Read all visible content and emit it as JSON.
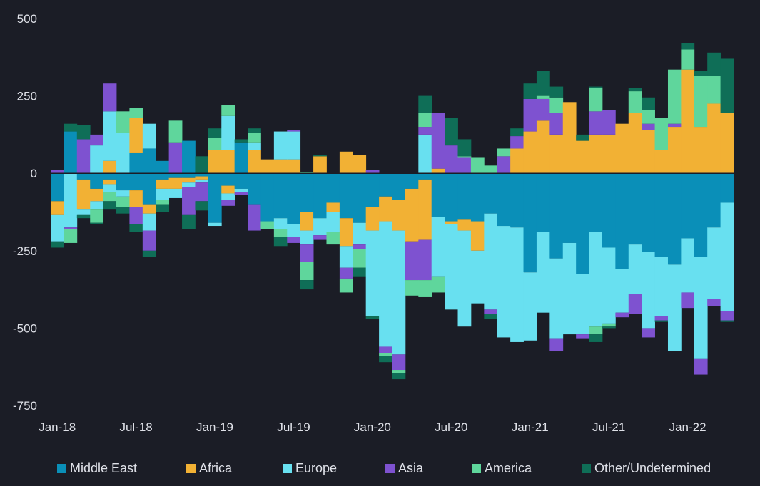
{
  "colors": {
    "background": "#1b1d26",
    "text": "#dfe1e8",
    "Middle East": "#0a8fb8",
    "Africa": "#f2b134",
    "Europe": "#68e0f0",
    "Asia": "#7e52d0",
    "America": "#5fd69c",
    "Other/Undetermined": "#0f6e57"
  },
  "chart_data": {
    "type": "bar",
    "stacked": true,
    "diverging": true,
    "title": "",
    "xlabel": "",
    "ylabel": "",
    "ylim": [
      -750,
      500
    ],
    "y_ticks": [
      500,
      250,
      0,
      -250,
      -500,
      -750
    ],
    "y_tick_labels": [
      "500",
      "250",
      "0",
      "-250",
      "-500",
      "-750"
    ],
    "x_tick_labels": [
      "Jan-18",
      "Jul-18",
      "Jan-19",
      "Jul-19",
      "Jan-20",
      "Jul-20",
      "Jan-21",
      "Jul-21",
      "Jan-22"
    ],
    "x_tick_months": [
      "Jan-18",
      "Jul-18",
      "Jan-19",
      "Jul-19",
      "Jan-20",
      "Jul-20",
      "Jan-21",
      "Jul-21",
      "Jan-22"
    ],
    "grid": false,
    "legend_position": "bottom",
    "categories": [
      "Jan-18",
      "Feb-18",
      "Mar-18",
      "Apr-18",
      "May-18",
      "Jun-18",
      "Jul-18",
      "Aug-18",
      "Sep-18",
      "Oct-18",
      "Nov-18",
      "Dec-18",
      "Jan-19",
      "Feb-19",
      "Mar-19",
      "Apr-19",
      "May-19",
      "Jun-19",
      "Jul-19",
      "Aug-19",
      "Sep-19",
      "Oct-19",
      "Nov-19",
      "Dec-19",
      "Jan-20",
      "Feb-20",
      "Mar-20",
      "Apr-20",
      "May-20",
      "Jun-20",
      "Jul-20",
      "Aug-20",
      "Sep-20",
      "Oct-20",
      "Nov-20",
      "Dec-20",
      "Jan-21",
      "Feb-21",
      "Mar-21",
      "Apr-21",
      "May-21",
      "Jun-21",
      "Jul-21",
      "Aug-21",
      "Sep-21",
      "Oct-21",
      "Nov-21",
      "Dec-21",
      "Jan-22",
      "Feb-22",
      "Mar-22",
      "Apr-22"
    ],
    "series": [
      {
        "name": "Middle East",
        "pos": [
          0,
          135,
          0,
          0,
          0,
          0,
          65,
          80,
          40,
          0,
          105,
          0,
          0,
          0,
          100,
          0,
          0,
          0,
          0,
          0,
          0,
          0,
          0,
          0,
          0,
          0,
          0,
          0,
          0,
          0,
          0,
          0,
          0,
          0,
          0,
          0,
          0,
          0,
          0,
          0,
          0,
          0,
          0,
          0,
          0,
          0,
          0,
          0,
          0,
          0,
          0,
          0
        ],
        "neg": [
          -90,
          0,
          -20,
          -50,
          -20,
          -55,
          -55,
          -100,
          -20,
          -15,
          -15,
          -10,
          -160,
          -40,
          -50,
          -100,
          -155,
          -145,
          -165,
          -125,
          -145,
          -95,
          -145,
          -160,
          -110,
          -75,
          -85,
          -50,
          -20,
          -140,
          -155,
          -150,
          -155,
          -130,
          -170,
          -175,
          -320,
          -190,
          -275,
          -225,
          -325,
          -190,
          -240,
          -310,
          -230,
          -255,
          -270,
          -295,
          -210,
          -270,
          -175,
          -95
        ]
      },
      {
        "name": "Africa",
        "pos": [
          0,
          0,
          0,
          0,
          40,
          0,
          115,
          0,
          0,
          0,
          0,
          0,
          75,
          75,
          0,
          75,
          45,
          45,
          45,
          0,
          55,
          0,
          70,
          60,
          0,
          0,
          0,
          0,
          0,
          15,
          0,
          0,
          0,
          0,
          0,
          80,
          135,
          170,
          125,
          230,
          105,
          125,
          125,
          160,
          195,
          140,
          75,
          150,
          335,
          150,
          225,
          195
        ],
        "neg": [
          -45,
          0,
          -95,
          -40,
          -15,
          0,
          -55,
          -30,
          -30,
          -35,
          -15,
          -10,
          0,
          -25,
          0,
          0,
          0,
          0,
          0,
          -60,
          0,
          -30,
          -90,
          0,
          -75,
          -80,
          -100,
          -170,
          -195,
          0,
          -10,
          -35,
          -95,
          0,
          0,
          0,
          0,
          0,
          0,
          0,
          0,
          0,
          0,
          0,
          0,
          0,
          0,
          0,
          0,
          0,
          0,
          0
        ]
      },
      {
        "name": "Europe",
        "pos": [
          0,
          0,
          0,
          90,
          160,
          130,
          0,
          80,
          0,
          0,
          0,
          0,
          0,
          110,
          0,
          25,
          0,
          90,
          90,
          0,
          0,
          0,
          0,
          0,
          0,
          0,
          0,
          0,
          125,
          0,
          0,
          0,
          0,
          0,
          0,
          0,
          0,
          0,
          0,
          0,
          0,
          0,
          0,
          0,
          0,
          0,
          0,
          0,
          0,
          0,
          0,
          0
        ],
        "neg": [
          -85,
          -175,
          -20,
          -25,
          -25,
          -20,
          0,
          -55,
          -35,
          -30,
          -15,
          -10,
          -10,
          -20,
          -10,
          0,
          0,
          -35,
          -40,
          -45,
          -55,
          -65,
          -70,
          -70,
          -275,
          -405,
          -400,
          0,
          0,
          -195,
          -275,
          -310,
          -170,
          -310,
          -360,
          -370,
          -220,
          -260,
          -260,
          -295,
          -195,
          -305,
          -245,
          -140,
          -160,
          -245,
          -190,
          -280,
          -175,
          -330,
          -230,
          -350
        ]
      },
      {
        "name": "Asia",
        "pos": [
          10,
          0,
          110,
          35,
          90,
          0,
          0,
          0,
          0,
          100,
          0,
          0,
          0,
          0,
          0,
          0,
          0,
          0,
          5,
          0,
          0,
          0,
          0,
          0,
          10,
          0,
          0,
          0,
          25,
          180,
          90,
          50,
          0,
          0,
          55,
          40,
          105,
          70,
          70,
          0,
          0,
          75,
          80,
          0,
          0,
          20,
          0,
          10,
          0,
          0,
          0,
          0
        ],
        "neg": [
          0,
          -5,
          0,
          0,
          0,
          0,
          -55,
          -65,
          0,
          0,
          -90,
          -60,
          0,
          -20,
          -10,
          -85,
          0,
          0,
          -20,
          -55,
          -15,
          0,
          -35,
          -15,
          0,
          -20,
          -50,
          -125,
          -130,
          0,
          0,
          0,
          0,
          -15,
          0,
          0,
          0,
          0,
          -40,
          0,
          -15,
          0,
          0,
          -15,
          -65,
          -30,
          -15,
          0,
          -50,
          -50,
          -25,
          -30
        ]
      },
      {
        "name": "America",
        "pos": [
          0,
          0,
          0,
          0,
          0,
          70,
          30,
          0,
          0,
          70,
          0,
          0,
          40,
          35,
          0,
          30,
          0,
          0,
          0,
          5,
          0,
          0,
          0,
          0,
          0,
          0,
          0,
          0,
          45,
          0,
          0,
          5,
          50,
          25,
          25,
          0,
          0,
          10,
          50,
          0,
          0,
          75,
          0,
          0,
          70,
          45,
          105,
          175,
          65,
          165,
          90,
          0
        ],
        "neg": [
          0,
          -45,
          0,
          -45,
          -30,
          -35,
          0,
          0,
          -15,
          0,
          0,
          0,
          0,
          0,
          0,
          0,
          -25,
          -25,
          0,
          -60,
          0,
          -40,
          -45,
          -60,
          0,
          -10,
          -10,
          -50,
          -55,
          -50,
          0,
          0,
          0,
          0,
          0,
          0,
          0,
          0,
          0,
          0,
          0,
          -25,
          -10,
          0,
          0,
          0,
          0,
          0,
          0,
          0,
          0,
          0
        ]
      },
      {
        "name": "Other/Undetermined",
        "pos": [
          0,
          25,
          45,
          0,
          0,
          0,
          0,
          0,
          0,
          0,
          0,
          55,
          30,
          0,
          10,
          15,
          0,
          0,
          0,
          0,
          5,
          0,
          0,
          0,
          0,
          0,
          0,
          0,
          55,
          0,
          90,
          55,
          0,
          0,
          0,
          25,
          50,
          80,
          35,
          0,
          20,
          5,
          0,
          0,
          10,
          40,
          0,
          0,
          20,
          15,
          75,
          175
        ],
        "neg": [
          -20,
          0,
          -10,
          -5,
          -25,
          -20,
          -25,
          -20,
          -25,
          0,
          -45,
          -30,
          0,
          0,
          0,
          0,
          0,
          -30,
          0,
          -30,
          0,
          0,
          0,
          -30,
          -10,
          -20,
          -20,
          0,
          0,
          0,
          0,
          0,
          0,
          -15,
          0,
          0,
          0,
          0,
          0,
          0,
          0,
          -25,
          -5,
          0,
          0,
          0,
          -5,
          0,
          0,
          0,
          0,
          -5
        ]
      }
    ]
  },
  "legend": {
    "items": [
      {
        "label": "Middle East"
      },
      {
        "label": "Africa"
      },
      {
        "label": "Europe"
      },
      {
        "label": "Asia"
      },
      {
        "label": "America"
      },
      {
        "label": "Other/Undetermined"
      }
    ]
  }
}
